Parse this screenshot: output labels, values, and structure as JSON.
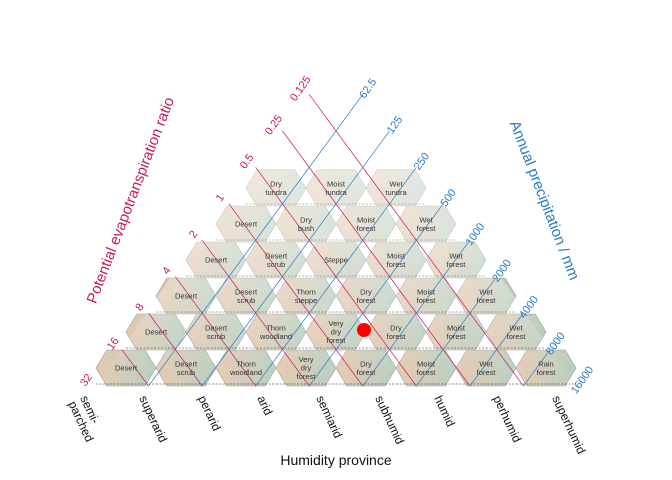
{
  "chart_data": {
    "type": "ternary-diagram",
    "axes": {
      "pet": {
        "label": "Potential evapotranspiration ratio",
        "ticks": [
          "0.125",
          "0.25",
          "0.5",
          "1",
          "2",
          "4",
          "8",
          "16",
          "32"
        ]
      },
      "precipitation": {
        "label": "Annual precipitation / mm",
        "ticks": [
          "62.5",
          "125",
          "250",
          "500",
          "1000",
          "2000",
          "4000",
          "8000",
          "16000"
        ]
      },
      "humidity": {
        "label": "Humidity province",
        "ticks": [
          "semi-\nparched",
          "superarid",
          "perarid",
          "arid",
          "semiarid",
          "subhumid",
          "humid",
          "perhumid",
          "superhumid"
        ]
      }
    },
    "rows": [
      {
        "cells": [
          [
            "Dry",
            "tundra"
          ],
          [
            "Moist",
            "tundra"
          ],
          [
            "Wet",
            "tundra"
          ]
        ]
      },
      {
        "cells": [
          [
            "Desert"
          ],
          [
            "Dry",
            "bush"
          ],
          [
            "Moist",
            "forest"
          ],
          [
            "Wet",
            "forest"
          ]
        ]
      },
      {
        "cells": [
          [
            "Desert"
          ],
          [
            "Desert",
            "scrub"
          ],
          [
            "Steppe"
          ],
          [
            "Moist",
            "forest"
          ],
          [
            "Wet",
            "forest"
          ]
        ]
      },
      {
        "cells": [
          [
            "Desert"
          ],
          [
            "Desert",
            "scrub"
          ],
          [
            "Thorn",
            "steppe"
          ],
          [
            "Dry",
            "forest"
          ],
          [
            "Moist",
            "forest"
          ],
          [
            "Wet",
            "forest"
          ]
        ]
      },
      {
        "cells": [
          [
            "Desert"
          ],
          [
            "Desert",
            "scrub"
          ],
          [
            "Thorn",
            "woodland"
          ],
          [
            "Very",
            "dry",
            "forest"
          ],
          [
            "Dry",
            "forest"
          ],
          [
            "Moist",
            "forest"
          ],
          [
            "Wet",
            "forest"
          ]
        ]
      },
      {
        "cells": [
          [
            "Desert"
          ],
          [
            "Desert",
            "scrub"
          ],
          [
            "Thorn",
            "woodland"
          ],
          [
            "Very",
            "dry",
            "forest"
          ],
          [
            "Dry",
            "forest"
          ],
          [
            "Moist",
            "forest"
          ],
          [
            "Wet",
            "forest"
          ],
          [
            "Rain",
            "forest"
          ]
        ]
      }
    ],
    "marker": {
      "humidity_index": 5.0,
      "pet_index": 4.6,
      "color": "#ff0000"
    },
    "colors": {
      "pet": "#c8185a",
      "precipitation": "#2a7bc4",
      "arid": "#e6c8b0",
      "humid": "#b6cfc0",
      "cold": "#ffffff",
      "outline": "#9a9a9a"
    }
  }
}
